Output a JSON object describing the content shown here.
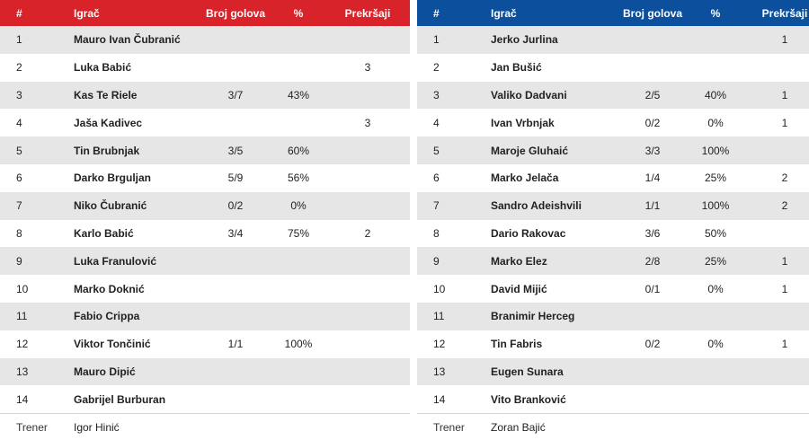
{
  "columns": {
    "num": "#",
    "player": "Igrač",
    "goals": "Broj golova",
    "pct": "%",
    "fouls": "Prekršaji"
  },
  "colors": {
    "home_header": "#d8232a",
    "away_header": "#0c4f9c",
    "stripe": "#e6e6e6"
  },
  "home": {
    "players": [
      {
        "num": "1",
        "name": "Mauro Ivan Čubranić",
        "goals": "",
        "pct": "",
        "fouls": ""
      },
      {
        "num": "2",
        "name": "Luka Babić",
        "goals": "",
        "pct": "",
        "fouls": "3"
      },
      {
        "num": "3",
        "name": "Kas Te Riele",
        "goals": "3/7",
        "pct": "43%",
        "fouls": ""
      },
      {
        "num": "4",
        "name": "Jaša Kadivec",
        "goals": "",
        "pct": "",
        "fouls": "3"
      },
      {
        "num": "5",
        "name": "Tin Brubnjak",
        "goals": "3/5",
        "pct": "60%",
        "fouls": ""
      },
      {
        "num": "6",
        "name": "Darko Brguljan",
        "goals": "5/9",
        "pct": "56%",
        "fouls": ""
      },
      {
        "num": "7",
        "name": "Niko Čubranić",
        "goals": "0/2",
        "pct": "0%",
        "fouls": ""
      },
      {
        "num": "8",
        "name": "Karlo Babić",
        "goals": "3/4",
        "pct": "75%",
        "fouls": "2"
      },
      {
        "num": "9",
        "name": "Luka Franulović",
        "goals": "",
        "pct": "",
        "fouls": ""
      },
      {
        "num": "10",
        "name": "Marko Doknić",
        "goals": "",
        "pct": "",
        "fouls": ""
      },
      {
        "num": "11",
        "name": "Fabio Crippa",
        "goals": "",
        "pct": "",
        "fouls": ""
      },
      {
        "num": "12",
        "name": "Viktor Tončinić",
        "goals": "1/1",
        "pct": "100%",
        "fouls": ""
      },
      {
        "num": "13",
        "name": "Mauro Dipić",
        "goals": "",
        "pct": "",
        "fouls": ""
      },
      {
        "num": "14",
        "name": "Gabrijel Burburan",
        "goals": "",
        "pct": "",
        "fouls": ""
      }
    ],
    "coach_label": "Trener",
    "coach_name": "Igor Hinić"
  },
  "away": {
    "players": [
      {
        "num": "1",
        "name": "Jerko Jurlina",
        "goals": "",
        "pct": "",
        "fouls": "1"
      },
      {
        "num": "2",
        "name": "Jan Bušić",
        "goals": "",
        "pct": "",
        "fouls": ""
      },
      {
        "num": "3",
        "name": "Valiko Dadvani",
        "goals": "2/5",
        "pct": "40%",
        "fouls": "1"
      },
      {
        "num": "4",
        "name": "Ivan Vrbnjak",
        "goals": "0/2",
        "pct": "0%",
        "fouls": "1"
      },
      {
        "num": "5",
        "name": "Maroje Gluhaić",
        "goals": "3/3",
        "pct": "100%",
        "fouls": ""
      },
      {
        "num": "6",
        "name": "Marko Jelača",
        "goals": "1/4",
        "pct": "25%",
        "fouls": "2"
      },
      {
        "num": "7",
        "name": "Sandro Adeishvili",
        "goals": "1/1",
        "pct": "100%",
        "fouls": "2"
      },
      {
        "num": "8",
        "name": "Dario Rakovac",
        "goals": "3/6",
        "pct": "50%",
        "fouls": ""
      },
      {
        "num": "9",
        "name": "Marko Elez",
        "goals": "2/8",
        "pct": "25%",
        "fouls": "1"
      },
      {
        "num": "10",
        "name": "David Mijić",
        "goals": "0/1",
        "pct": "0%",
        "fouls": "1"
      },
      {
        "num": "11",
        "name": "Branimir Herceg",
        "goals": "",
        "pct": "",
        "fouls": ""
      },
      {
        "num": "12",
        "name": "Tin Fabris",
        "goals": "0/2",
        "pct": "0%",
        "fouls": "1"
      },
      {
        "num": "13",
        "name": "Eugen Sunara",
        "goals": "",
        "pct": "",
        "fouls": ""
      },
      {
        "num": "14",
        "name": "Vito Branković",
        "goals": "",
        "pct": "",
        "fouls": ""
      }
    ],
    "coach_label": "Trener",
    "coach_name": "Zoran Bajić"
  }
}
